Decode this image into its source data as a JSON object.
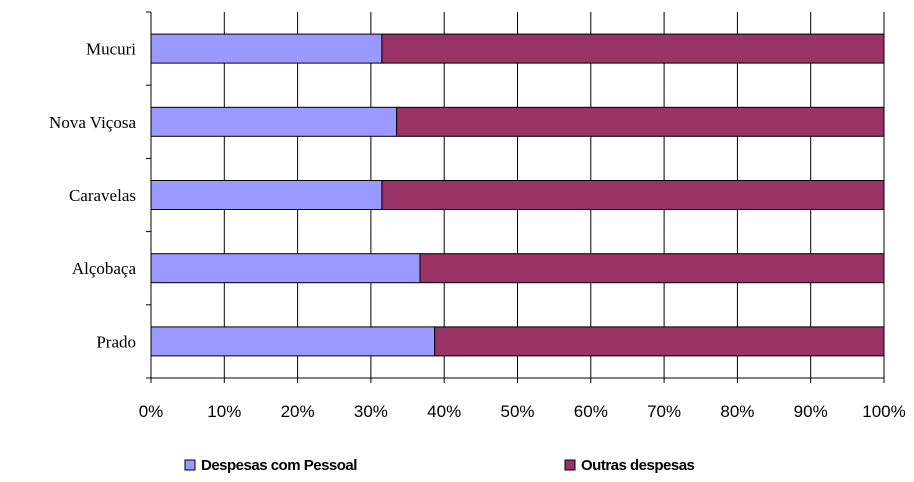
{
  "chart_data": {
    "type": "bar",
    "orientation": "horizontal",
    "stacked": "percent",
    "categories": [
      "Mucuri",
      "Nova Viçosa",
      "Caravelas",
      "Alçobaça",
      "Prado"
    ],
    "series": [
      {
        "name": "Despesas com Pessoal",
        "color": "#9999ff",
        "values": [
          31.5,
          33.5,
          31.5,
          36.7,
          38.7
        ]
      },
      {
        "name": "Outras despesas",
        "color": "#993366",
        "values": [
          68.5,
          66.5,
          68.5,
          63.3,
          61.3
        ]
      }
    ],
    "x_ticks": [
      "0%",
      "10%",
      "20%",
      "30%",
      "40%",
      "50%",
      "60%",
      "70%",
      "80%",
      "90%",
      "100%"
    ],
    "xlim": [
      0,
      100
    ],
    "grid": "vertical",
    "legend_position": "bottom"
  }
}
